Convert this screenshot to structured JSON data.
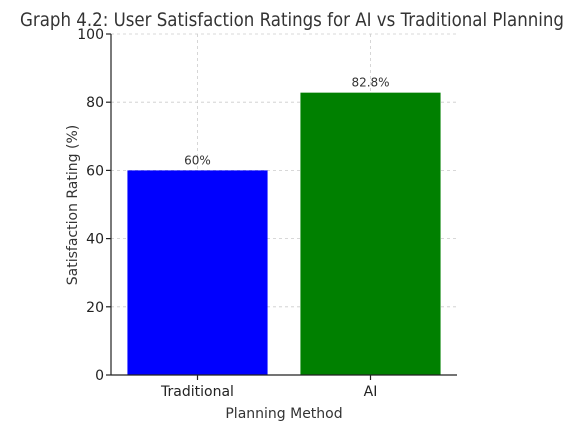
{
  "chart_data": {
    "type": "bar",
    "title": "Graph 4.2: User Satisfaction Ratings for AI vs Traditional Planning",
    "xlabel": "Planning Method",
    "ylabel": "Satisfaction Rating (%)",
    "categories": [
      "Traditional",
      "AI"
    ],
    "values": [
      60,
      82.8
    ],
    "data_labels": [
      "60%",
      "82.8%"
    ],
    "colors": [
      "#0000ff",
      "#008000"
    ],
    "ylim": [
      0,
      100
    ],
    "yticks": [
      0,
      20,
      40,
      60,
      80,
      100
    ],
    "grid": true
  }
}
